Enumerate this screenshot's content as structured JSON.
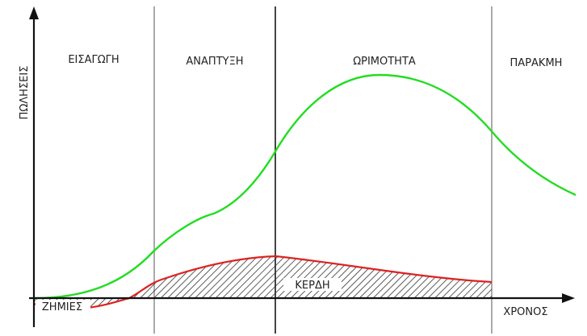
{
  "axes": {
    "y_label": "ΠΩΛΗΣΕΙΣ",
    "x_label": "ΧΡΟΝΟΣ"
  },
  "stages": [
    {
      "label": "ΕΙΣΑΓΩΓΗ"
    },
    {
      "label": "ΑΝΑΠΤΥΞΗ"
    },
    {
      "label": "ΩΡΙΜΟΤΗΤΑ"
    },
    {
      "label": "ΠΑΡΑΚΜΗ"
    }
  ],
  "areas": {
    "losses_label": "ΖΗΜΙΕΣ",
    "profits_label": "ΚΕΡΔΗ"
  },
  "colors": {
    "sales_curve": "#22dd22",
    "profit_curve": "#dd2222",
    "axis": "#111111",
    "stage_divider": "#aaaaaa"
  }
}
